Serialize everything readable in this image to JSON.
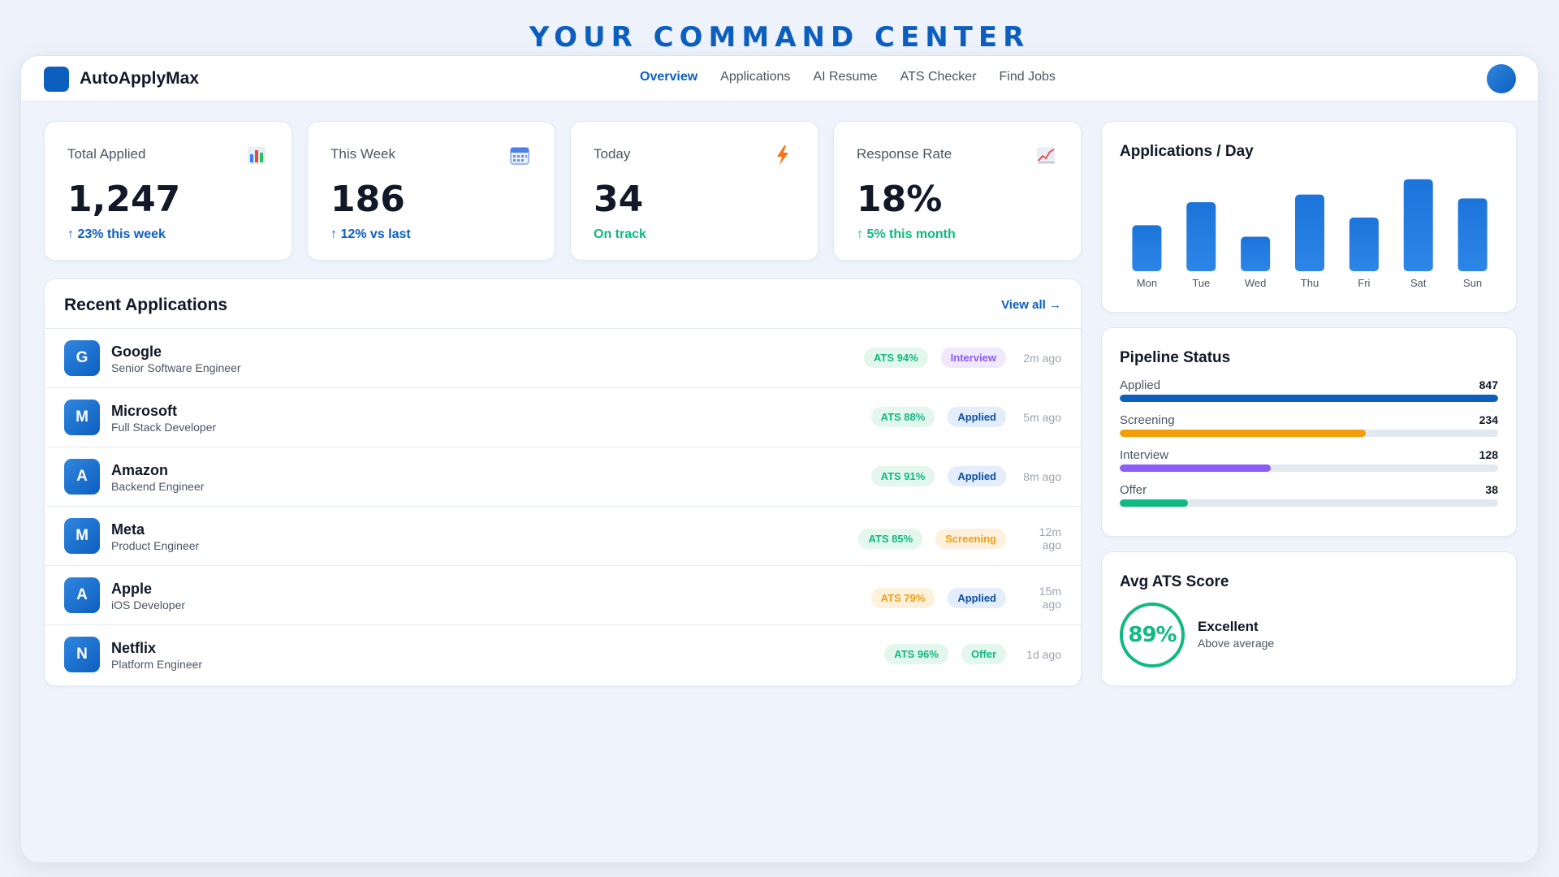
{
  "headline": "YOUR COMMAND CENTER",
  "app": {
    "name": "AutoApplyMax",
    "brand_color": "#0d5fbf"
  },
  "nav": {
    "links": [
      {
        "label": "Overview",
        "active": true
      },
      {
        "label": "Applications",
        "active": false
      },
      {
        "label": "AI Resume",
        "active": false
      },
      {
        "label": "ATS Checker",
        "active": false
      },
      {
        "label": "Find Jobs",
        "active": false
      }
    ]
  },
  "stats": [
    {
      "label": "Total Applied",
      "value": "1,247",
      "trend": "↑ 23% this week",
      "trend_color": "blue",
      "icon": "bar-chart-icon"
    },
    {
      "label": "This Week",
      "value": "186",
      "trend": "↑ 12% vs last",
      "trend_color": "blue",
      "icon": "calendar-icon"
    },
    {
      "label": "Today",
      "value": "34",
      "trend": "On track",
      "trend_color": "green",
      "icon": "lightning-icon"
    },
    {
      "label": "Response Rate",
      "value": "18%",
      "trend": "↑ 5% this month",
      "trend_color": "green",
      "icon": "line-chart-icon"
    }
  ],
  "recent": {
    "title": "Recent Applications",
    "view_all": "View all →",
    "rows": [
      {
        "initial": "G",
        "company": "Google",
        "role": "Senior Software Engineer",
        "ats": "ATS 94%",
        "ats_level": "green",
        "status": "Interview",
        "status_kind": "interview",
        "time": "2m ago"
      },
      {
        "initial": "M",
        "company": "Microsoft",
        "role": "Full Stack Developer",
        "ats": "ATS 88%",
        "ats_level": "green",
        "status": "Applied",
        "status_kind": "applied",
        "time": "5m ago"
      },
      {
        "initial": "A",
        "company": "Amazon",
        "role": "Backend Engineer",
        "ats": "ATS 91%",
        "ats_level": "green",
        "status": "Applied",
        "status_kind": "applied",
        "time": "8m ago"
      },
      {
        "initial": "M",
        "company": "Meta",
        "role": "Product Engineer",
        "ats": "ATS 85%",
        "ats_level": "green",
        "status": "Screening",
        "status_kind": "screening",
        "time": "12m ago"
      },
      {
        "initial": "A",
        "company": "Apple",
        "role": "iOS Developer",
        "ats": "ATS 79%",
        "ats_level": "amber",
        "status": "Applied",
        "status_kind": "applied",
        "time": "15m ago"
      },
      {
        "initial": "N",
        "company": "Netflix",
        "role": "Platform Engineer",
        "ats": "ATS 96%",
        "ats_level": "green",
        "status": "Offer",
        "status_kind": "offer",
        "time": "1d ago"
      }
    ]
  },
  "chart_data": {
    "type": "bar",
    "title": "Applications / Day",
    "categories": [
      "Mon",
      "Tue",
      "Wed",
      "Thu",
      "Fri",
      "Sat",
      "Sun"
    ],
    "values": [
      48,
      72,
      36,
      80,
      56,
      96,
      76
    ],
    "ylim": [
      0,
      100
    ],
    "grid": false,
    "bar_color": "#1a73d9"
  },
  "pipeline": {
    "title": "Pipeline Status",
    "items": [
      {
        "label": "Applied",
        "count": "847",
        "fraction": 1.0,
        "color": "#0d5fbf"
      },
      {
        "label": "Screening",
        "count": "234",
        "fraction": 0.65,
        "color": "#f59e0b"
      },
      {
        "label": "Interview",
        "count": "128",
        "fraction": 0.4,
        "color": "#8b5cf6"
      },
      {
        "label": "Offer",
        "count": "38",
        "fraction": 0.18,
        "color": "#10b981"
      }
    ]
  },
  "ats_score": {
    "title": "Avg ATS Score",
    "value": "89%",
    "grade": "Excellent",
    "subtitle": "Above average",
    "color": "#10b981"
  }
}
